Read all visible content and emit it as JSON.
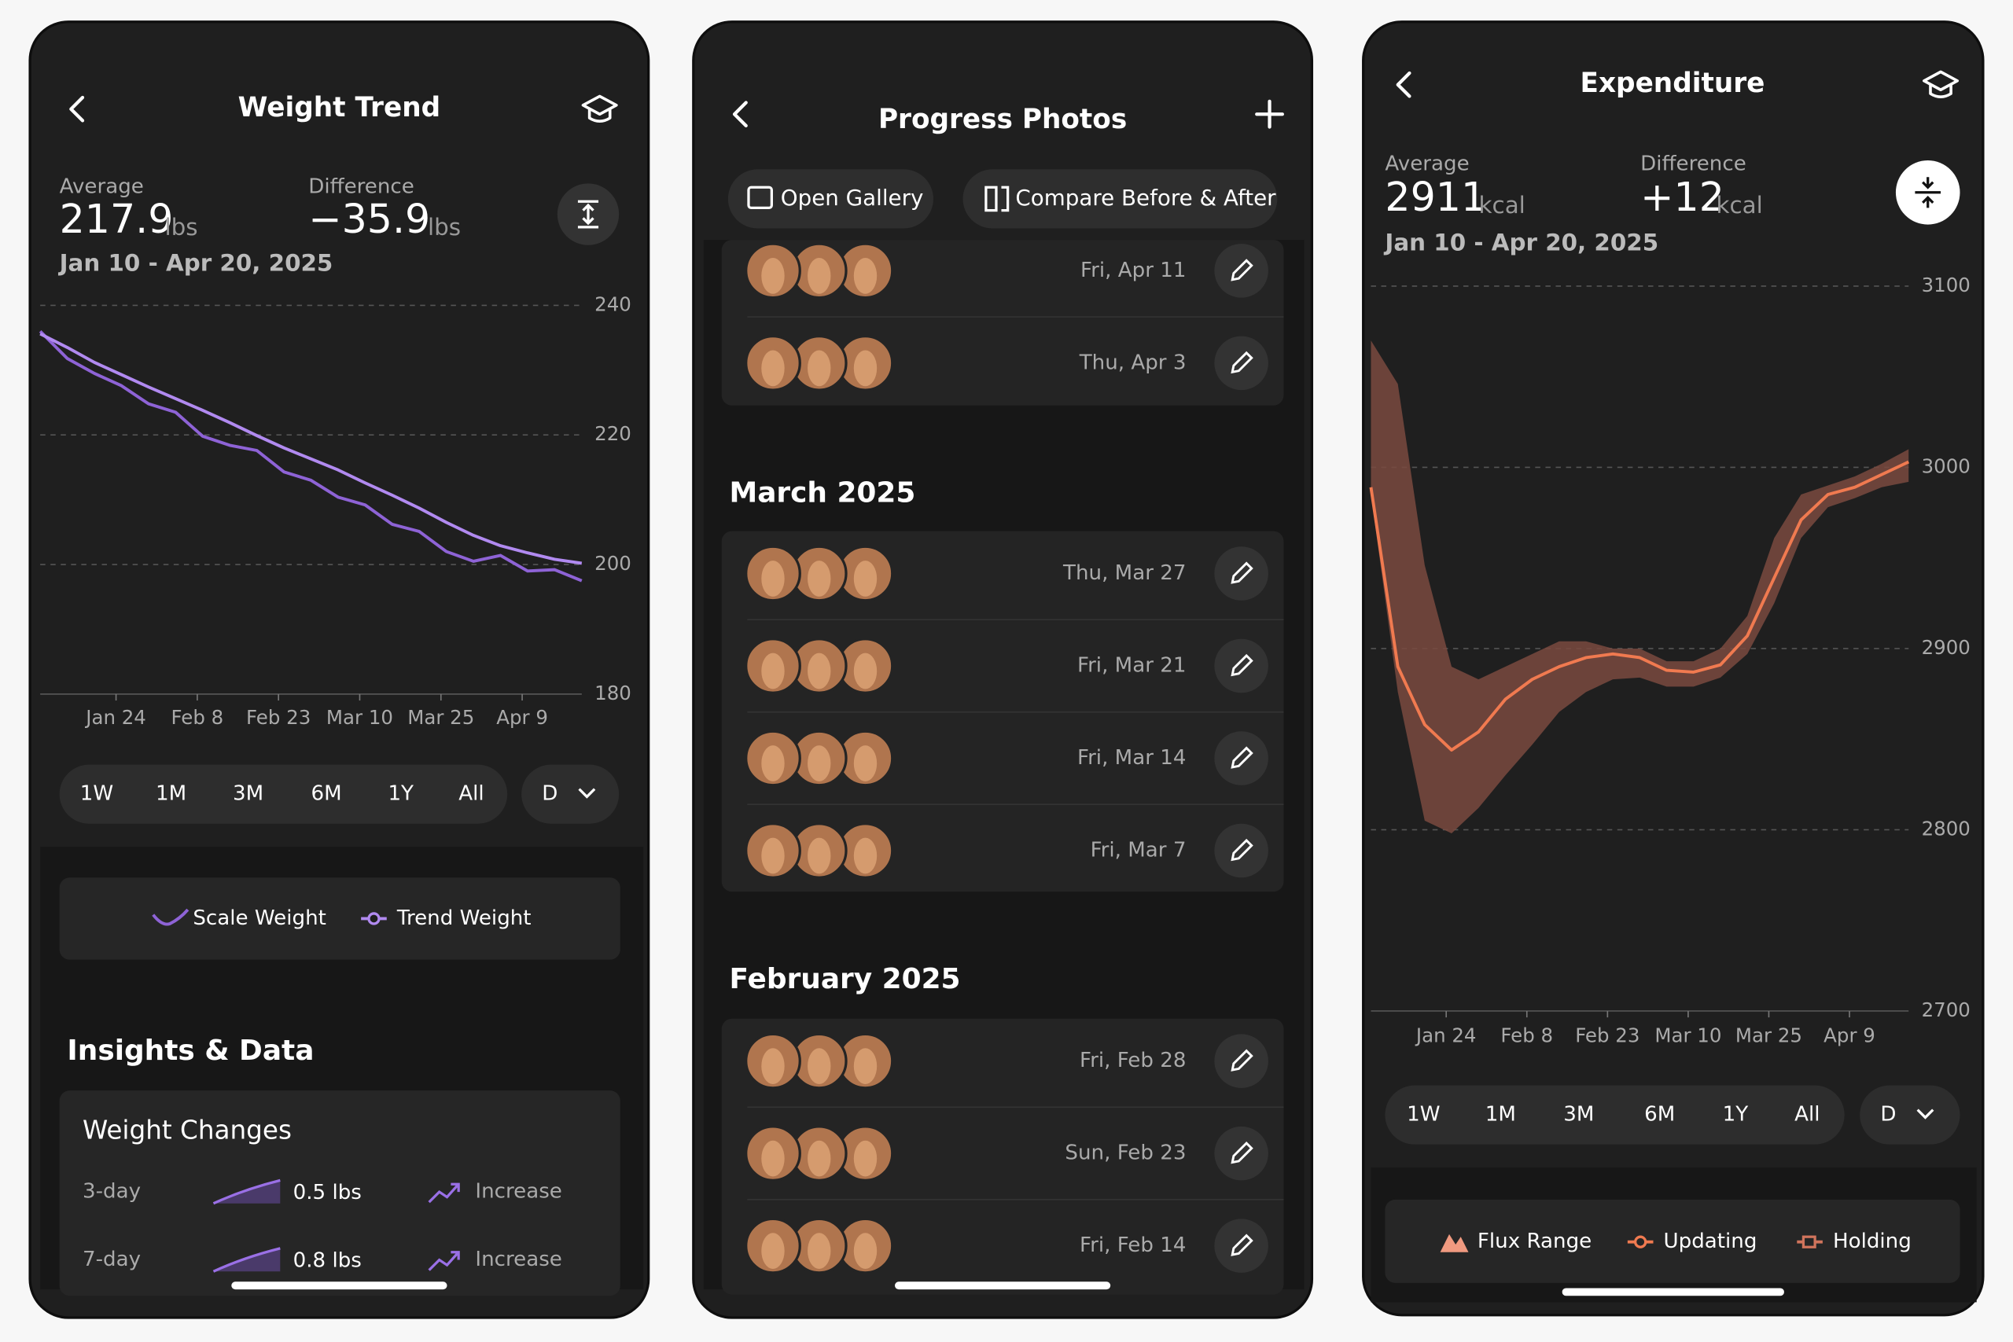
{
  "screens": [
    {
      "header": {
        "title": "Weight Trend"
      },
      "stats": [
        {
          "label": "Average",
          "value": "217.9",
          "unit": "lbs"
        },
        {
          "label": "Difference",
          "value": "−35.9",
          "unit": "lbs"
        }
      ],
      "date_range": "Jan 10 - Apr 20, 2025",
      "chart": {
        "type": "line",
        "ylim": [
          180,
          240
        ],
        "yticks": [
          240,
          220,
          200,
          180
        ],
        "grid": true,
        "xtick_labels": [
          "Jan 24",
          "Feb 8",
          "Feb 23",
          "Mar 10",
          "Mar 25",
          "Apr 9"
        ],
        "series": [
          {
            "name": "Scale Weight",
            "color": "#8e63d6",
            "values": [
              236.0,
              231.8,
              229.5,
              227.6,
              224.8,
              223.5,
              219.8,
              218.4,
              217.6,
              214.3,
              213.0,
              210.4,
              209.2,
              206.2,
              205.1,
              202.0,
              200.5,
              201.4,
              199.0,
              199.2,
              197.5
            ]
          },
          {
            "name": "Trend Weight",
            "color": "#b18af0",
            "values": [
              235.6,
              233.5,
              231.2,
              229.3,
              227.4,
              225.6,
              223.8,
              221.9,
              219.9,
              218.0,
              216.3,
              214.6,
              212.6,
              210.7,
              208.7,
              206.5,
              204.5,
              202.9,
              201.8,
              200.8,
              200.2
            ]
          }
        ]
      },
      "ranges": [
        "1W",
        "1M",
        "3M",
        "6M",
        "1Y",
        "All"
      ],
      "resolution": "D",
      "insights_title": "Insights & Data",
      "card_title": "Weight Changes",
      "changes": [
        {
          "period": "3-day",
          "amount": "0.5 lbs",
          "direction": "Increase"
        },
        {
          "period": "7-day",
          "amount": "0.8 lbs",
          "direction": "Increase"
        }
      ]
    },
    {
      "header": {
        "title": "Progress Photos"
      },
      "buttons": [
        "Open Gallery",
        "Compare Before & After"
      ],
      "groups": [
        {
          "entries": [
            "Fri, Apr 11",
            "Thu, Apr 3"
          ]
        },
        {
          "title": "March 2025",
          "entries": [
            "Thu, Mar 27",
            "Fri, Mar 21",
            "Fri, Mar 14",
            "Fri, Mar 7"
          ]
        },
        {
          "title": "February 2025",
          "entries": [
            "Fri, Feb 28",
            "Sun, Feb 23",
            "Fri, Feb 14"
          ]
        }
      ]
    },
    {
      "header": {
        "title": "Expenditure"
      },
      "stats": [
        {
          "label": "Average",
          "value": "2911",
          "unit": "kcal"
        },
        {
          "label": "Difference",
          "value": "+12",
          "unit": "kcal"
        }
      ],
      "date_range": "Jan 10 - Apr 20, 2025",
      "chart": {
        "type": "line",
        "ylim": [
          2700,
          3100
        ],
        "yticks": [
          3100,
          3000,
          2900,
          2800,
          2700
        ],
        "grid": true,
        "xtick_labels": [
          "Jan 24",
          "Feb 8",
          "Feb 23",
          "Mar 10",
          "Mar 25",
          "Apr 9"
        ],
        "series": [
          {
            "name": "Flux Range",
            "color": "#7a4a40",
            "upper": [
              3070,
              3046,
              2946,
              2890,
              2883,
              2890,
              2897,
              2904,
              2904,
              2900,
              2900,
              2893,
              2893,
              2900,
              2918,
              2961,
              2985,
              2990,
              2995,
              3002,
              3010
            ],
            "lower": [
              2985,
              2876,
              2805,
              2798,
              2812,
              2830,
              2847,
              2865,
              2876,
              2883,
              2884,
              2879,
              2879,
              2884,
              2897,
              2925,
              2961,
              2978,
              2983,
              2989,
              2992
            ]
          },
          {
            "name": "Updating",
            "color": "#f07a50",
            "values": [
              2989,
              2890,
              2858,
              2844,
              2854,
              2872,
              2883,
              2890,
              2895,
              2897,
              2895,
              2888,
              2887,
              2891,
              2907,
              2939,
              2971,
              2985,
              2989,
              2996,
              3003
            ]
          },
          {
            "name": "Holding",
            "color": "#d0745c"
          }
        ]
      },
      "ranges": [
        "1W",
        "1M",
        "3M",
        "6M",
        "1Y",
        "All"
      ],
      "resolution": "D"
    }
  ]
}
